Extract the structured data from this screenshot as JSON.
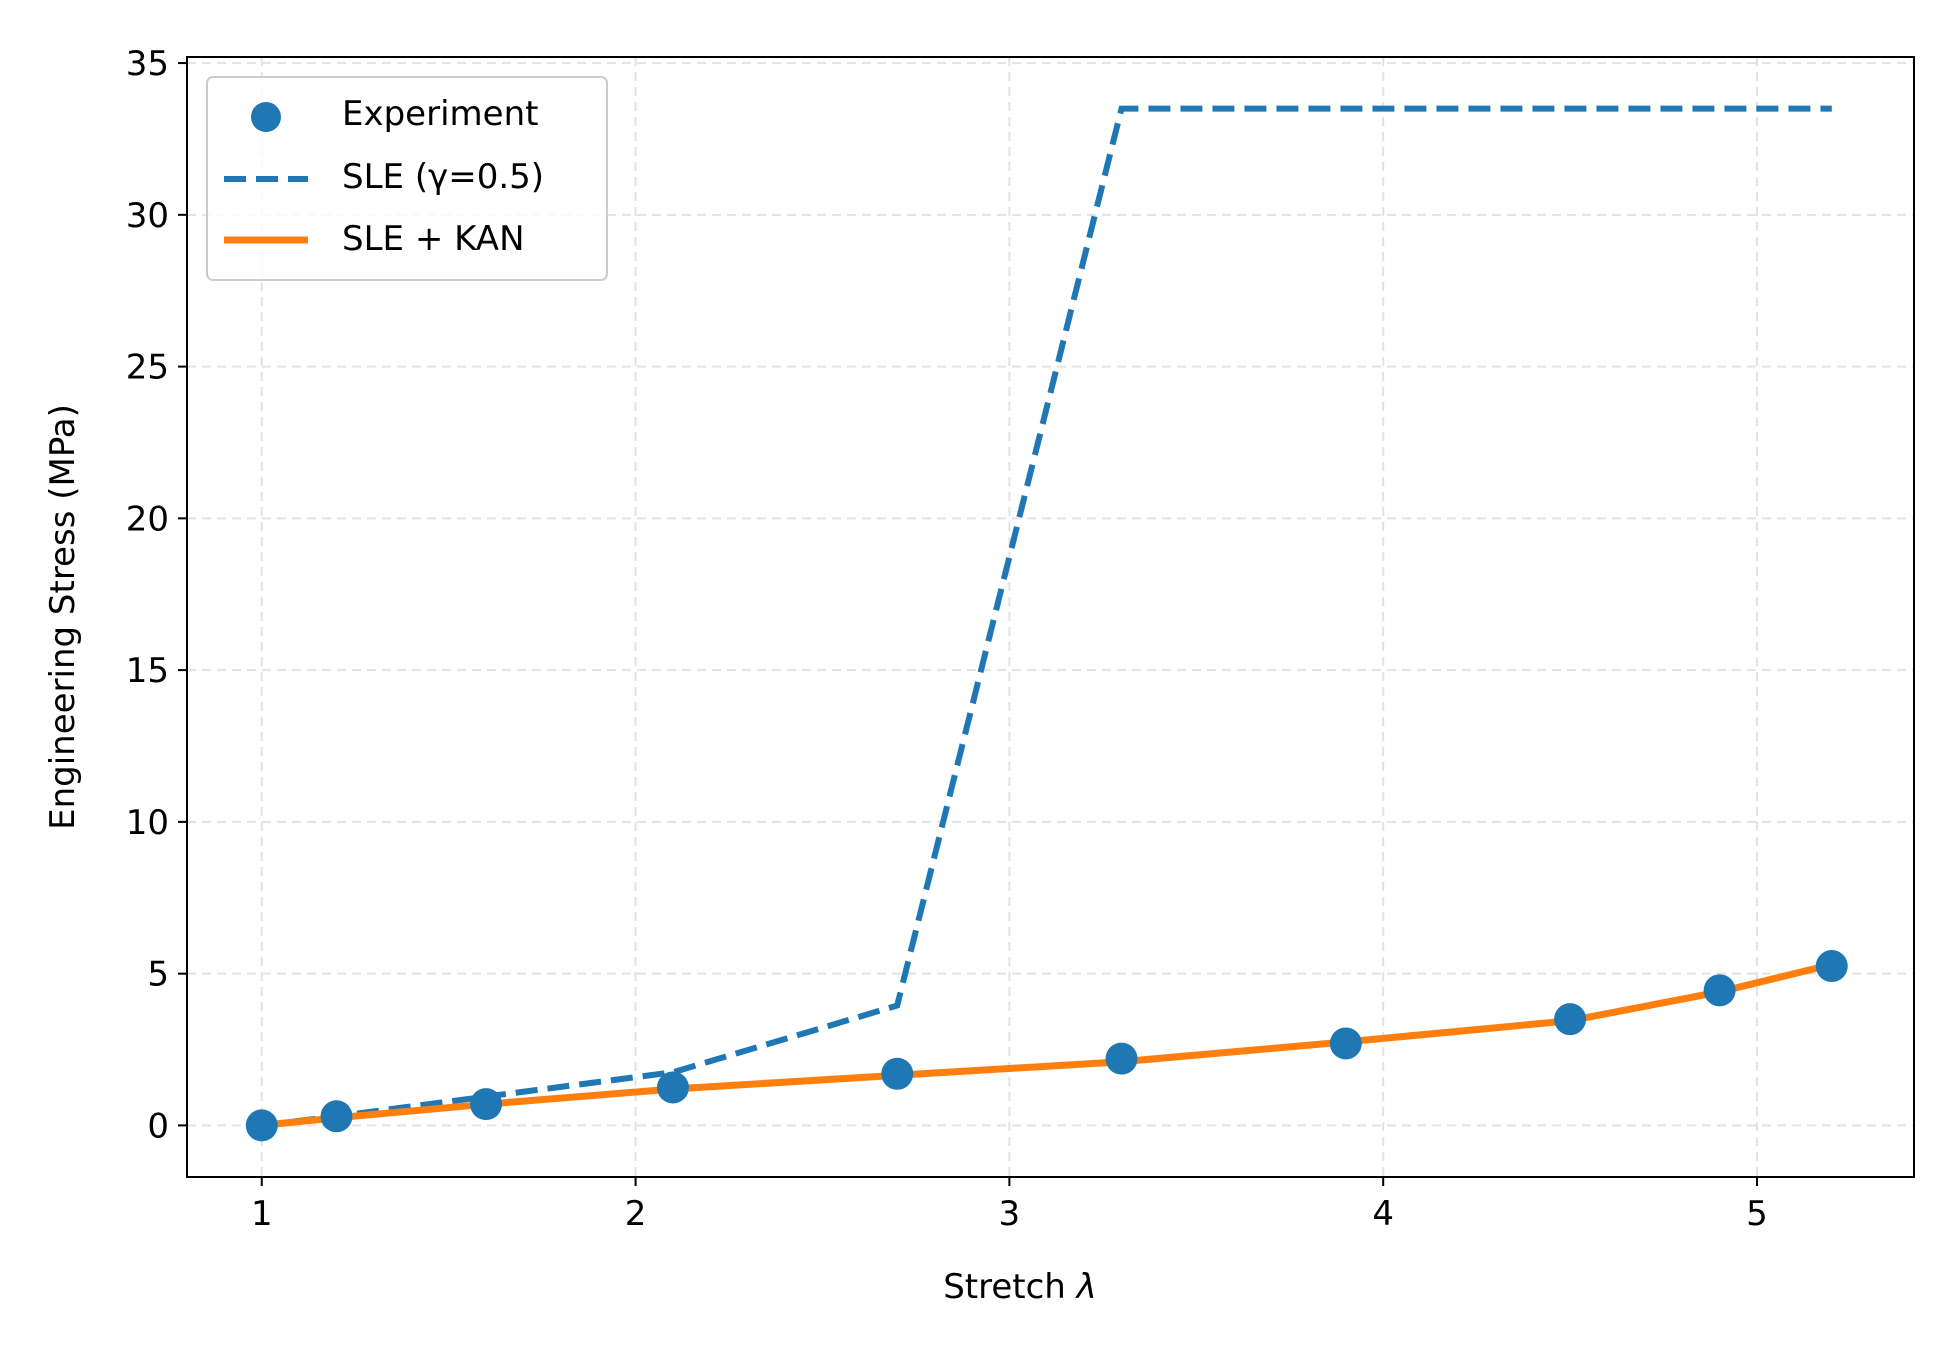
{
  "chart_data": {
    "type": "line",
    "title": "",
    "xlabel": "Stretch",
    "xlabel_symbol": "λ",
    "ylabel": "Engineering Stress (MPa)",
    "xlim": [
      0.8,
      5.42
    ],
    "ylim": [
      -1.7,
      35.2
    ],
    "xticks": [
      1,
      2,
      3,
      4,
      5
    ],
    "yticks": [
      0,
      5,
      10,
      15,
      20,
      25,
      30,
      35
    ],
    "grid": true,
    "legend_position": "top-left",
    "colors": {
      "blue": "#1f77b4",
      "orange": "#ff7f0e"
    },
    "series": [
      {
        "name": "Experiment",
        "style": "scatter",
        "color": "#1f77b4",
        "x": [
          1.0,
          1.2,
          1.6,
          2.1,
          2.7,
          3.3,
          3.9,
          4.5,
          4.9,
          5.2
        ],
        "y": [
          0.0,
          0.3,
          0.7,
          1.25,
          1.7,
          2.2,
          2.7,
          3.5,
          4.45,
          5.25
        ]
      },
      {
        "name": "SLE (γ=0.5)",
        "style": "dashed",
        "color": "#1f77b4",
        "x": [
          1.0,
          1.2,
          1.6,
          2.1,
          2.7,
          3.3,
          3.9,
          4.5,
          4.9,
          5.2
        ],
        "y": [
          0.0,
          0.3,
          0.95,
          1.75,
          3.95,
          33.5,
          33.5,
          33.5,
          33.5,
          33.5
        ]
      },
      {
        "name": "SLE + KAN",
        "style": "solid",
        "color": "#ff7f0e",
        "x": [
          1.0,
          1.2,
          1.6,
          2.1,
          2.7,
          3.3,
          3.9,
          4.5,
          4.9,
          5.2
        ],
        "y": [
          0.0,
          0.25,
          0.7,
          1.2,
          1.65,
          2.1,
          2.75,
          3.45,
          4.4,
          5.3
        ]
      }
    ]
  }
}
